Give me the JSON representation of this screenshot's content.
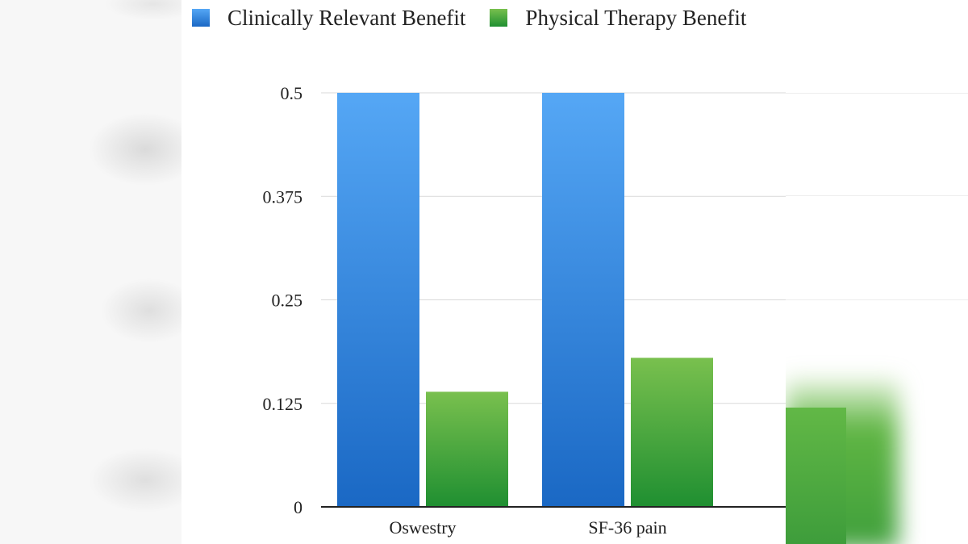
{
  "chart_data": {
    "type": "bar",
    "categories": [
      "Oswestry",
      "SF-36 pain"
    ],
    "series": [
      {
        "name": "Clinically Relevant Benefit",
        "values": [
          0.5,
          0.5
        ],
        "color": "#3b8fe0"
      },
      {
        "name": "Physical Therapy Benefit",
        "values": [
          0.139,
          0.18
        ],
        "color": "#45a840"
      }
    ],
    "ylim": [
      0,
      0.5
    ],
    "yticks": [
      "0",
      "0.125",
      "0.25",
      "0.375",
      "0.5"
    ],
    "ytick_values": [
      0,
      0.125,
      0.25,
      0.375,
      0.5
    ],
    "grid": true,
    "legend_position": "top",
    "title": "",
    "xlabel": "",
    "ylabel": ""
  }
}
